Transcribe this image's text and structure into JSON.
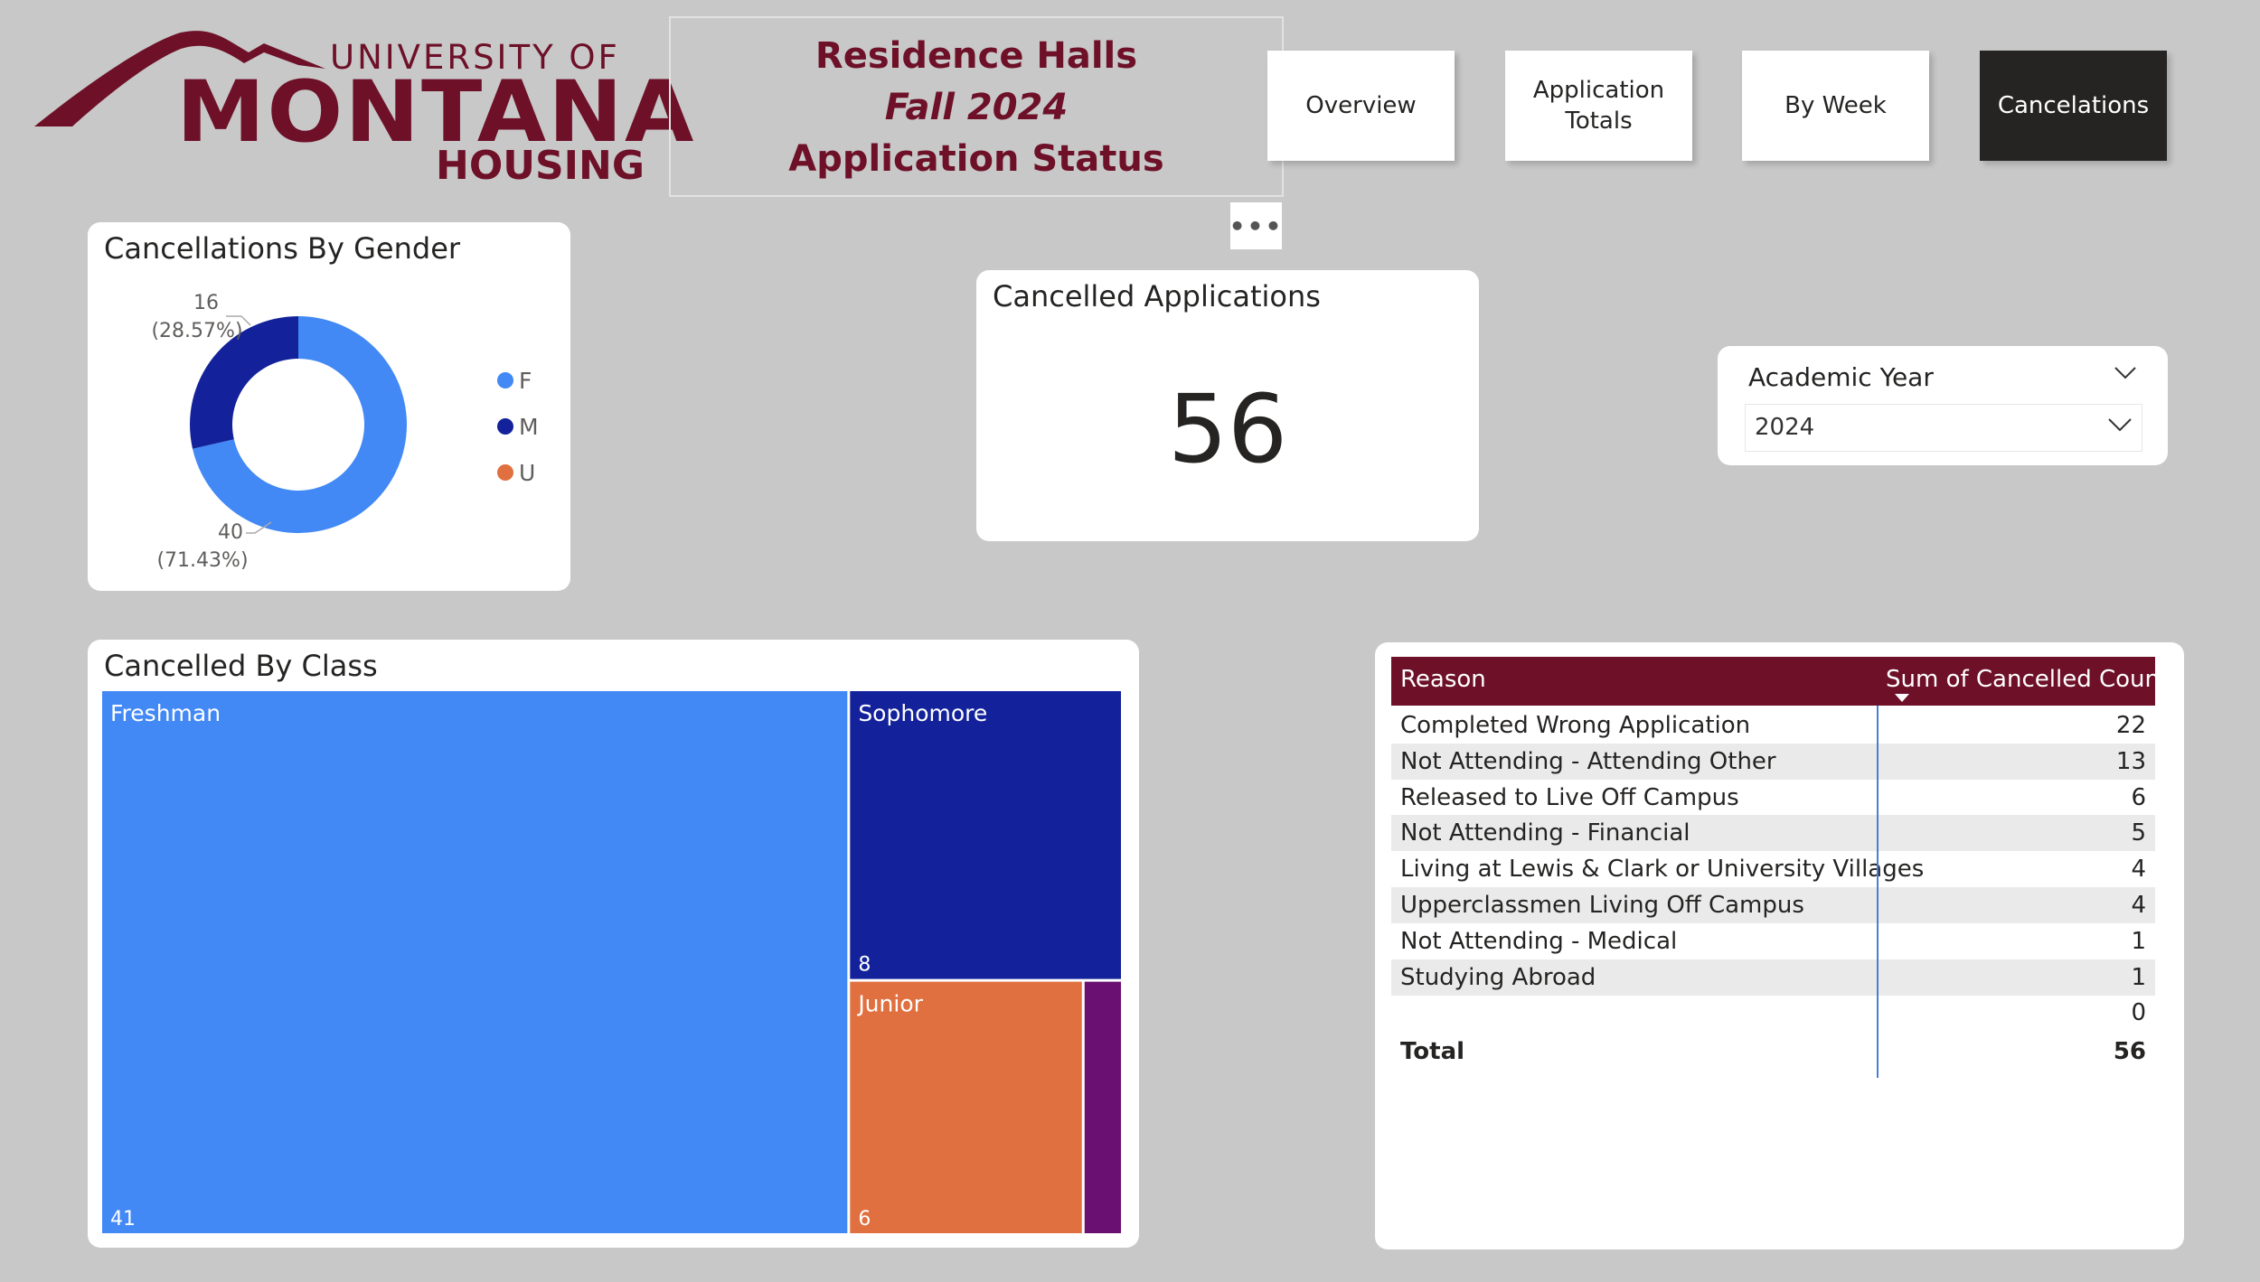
{
  "logo": {
    "line1": "UNIVERSITY OF",
    "line2": "MONTANA",
    "line3": "HOUSING",
    "color": "#6d1028"
  },
  "title": {
    "line1": "Residence Halls",
    "line2": "Fall 2024",
    "line3": "Application Status"
  },
  "nav": {
    "overview": "Overview",
    "application_totals_1": "Application",
    "application_totals_2": "Totals",
    "by_week": "By Week",
    "cancelations": "Cancelations",
    "active": "cancelations"
  },
  "more_icon": "more-options-icon",
  "gender_chart": {
    "title": "Cancellations By Gender",
    "chart_data": {
      "type": "pie",
      "slices": [
        {
          "label": "F",
          "value": 40,
          "pct": "(71.43%)",
          "color": "#4289f5"
        },
        {
          "label": "M",
          "value": 16,
          "pct": "(28.57%)",
          "color": "#13229a"
        },
        {
          "label": "U",
          "value": 0,
          "pct": "",
          "color": "#e0703f"
        }
      ],
      "legend": [
        "F",
        "M",
        "U"
      ],
      "legend_position": "right"
    }
  },
  "kpi": {
    "title": "Cancelled Applications",
    "value": "56"
  },
  "slicer": {
    "title": "Academic Year",
    "selected": "2024"
  },
  "class_chart": {
    "title": "Cancelled By Class",
    "chart_data": {
      "type": "treemap",
      "items": [
        {
          "label": "Freshman",
          "value": 41,
          "color": "#4289f5",
          "show_label": true,
          "show_value": true
        },
        {
          "label": "Sophomore",
          "value": 8,
          "color": "#13229a",
          "show_label": true,
          "show_value": true
        },
        {
          "label": "Junior",
          "value": 6,
          "color": "#e0703f",
          "show_label": true,
          "show_value": true
        },
        {
          "label": "",
          "value": 1,
          "color": "#6a1072",
          "show_label": false,
          "show_value": false
        }
      ]
    }
  },
  "table": {
    "header_reason": "Reason",
    "header_count": "Sum of Cancelled Count",
    "rows": [
      {
        "reason": "Completed Wrong Application",
        "count": "22"
      },
      {
        "reason": "Not Attending - Attending Other",
        "count": "13"
      },
      {
        "reason": "Released to Live Off Campus",
        "count": "6"
      },
      {
        "reason": "Not Attending - Financial",
        "count": "5"
      },
      {
        "reason": "Living at Lewis & Clark or University Villages",
        "count": "4"
      },
      {
        "reason": "Upperclassmen Living Off Campus",
        "count": "4"
      },
      {
        "reason": "Not Attending - Medical",
        "count": "1"
      },
      {
        "reason": "Studying Abroad",
        "count": "1"
      },
      {
        "reason": "",
        "count": "0"
      }
    ],
    "total_label": "Total",
    "total_value": "56"
  }
}
